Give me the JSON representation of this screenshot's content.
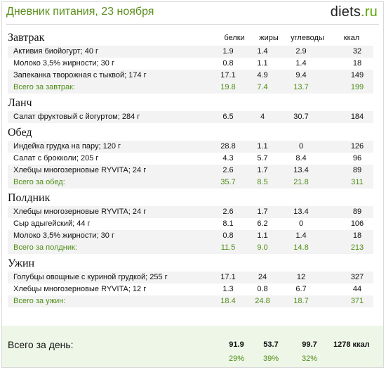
{
  "header": {
    "title": "Дневник питания, 23 ноября",
    "logo_main": "diets",
    "logo_tld": ".ru"
  },
  "columns": {
    "protein": "белки",
    "fat": "жиры",
    "carbs": "углеводы",
    "kcal": "ккал"
  },
  "meals": [
    {
      "name": "Завтрак",
      "items": [
        {
          "name": "Активия биойогурт; 40 г",
          "p": "1.9",
          "f": "1.4",
          "c": "2.9",
          "k": "32"
        },
        {
          "name": "Молоко 3,5% жирности; 30 г",
          "p": "0.8",
          "f": "1.1",
          "c": "1.4",
          "k": "18"
        },
        {
          "name": "Запеканка творожная с тыквой; 174 г",
          "p": "17.1",
          "f": "4.9",
          "c": "9.4",
          "k": "149"
        }
      ],
      "total": {
        "label": "Всего за завтрак:",
        "p": "19.8",
        "f": "7.4",
        "c": "13.7",
        "k": "199"
      }
    },
    {
      "name": "Ланч",
      "items": [
        {
          "name": "Салат фруктовый с йогуртом; 284 г",
          "p": "6.5",
          "f": "4",
          "c": "30.7",
          "k": "184"
        }
      ],
      "total": null
    },
    {
      "name": "Обед",
      "items": [
        {
          "name": "Индейка грудка на пару; 120 г",
          "p": "28.8",
          "f": "1.1",
          "c": "0",
          "k": "126"
        },
        {
          "name": "Салат с брокколи; 205 г",
          "p": "4.3",
          "f": "5.7",
          "c": "8.4",
          "k": "96"
        },
        {
          "name": "Хлебцы многозерновые RYVITA; 24 г",
          "p": "2.6",
          "f": "1.7",
          "c": "13.4",
          "k": "89"
        }
      ],
      "total": {
        "label": "Всего за обед:",
        "p": "35.7",
        "f": "8.5",
        "c": "21.8",
        "k": "311"
      }
    },
    {
      "name": "Полдник",
      "items": [
        {
          "name": "Хлебцы многозерновые RYVITA; 24 г",
          "p": "2.6",
          "f": "1.7",
          "c": "13.4",
          "k": "89"
        },
        {
          "name": "Сыр адыгейский; 44 г",
          "p": "8.1",
          "f": "6.2",
          "c": "0",
          "k": "106"
        },
        {
          "name": "Молоко 3,5% жирности; 30 г",
          "p": "0.8",
          "f": "1.1",
          "c": "1.4",
          "k": "18"
        }
      ],
      "total": {
        "label": "Всего за полдник:",
        "p": "11.5",
        "f": "9.0",
        "c": "14.8",
        "k": "213"
      }
    },
    {
      "name": "Ужин",
      "items": [
        {
          "name": "Голубцы овощные с куриной грудкой; 255 г",
          "p": "17.1",
          "f": "24",
          "c": "12",
          "k": "327"
        },
        {
          "name": "Хлебцы многозерновые RYVITA; 12 г",
          "p": "1.3",
          "f": "0.8",
          "c": "6.7",
          "k": "44"
        }
      ],
      "total": {
        "label": "Всего за ужин:",
        "p": "18.4",
        "f": "24.8",
        "c": "18.7",
        "k": "371"
      }
    }
  ],
  "day": {
    "label": "Всего за день:",
    "p": "91.9",
    "f": "53.7",
    "c": "99.7",
    "kcal": "1278 ккал",
    "p_pct": "29%",
    "f_pct": "39%",
    "c_pct": "32%"
  }
}
